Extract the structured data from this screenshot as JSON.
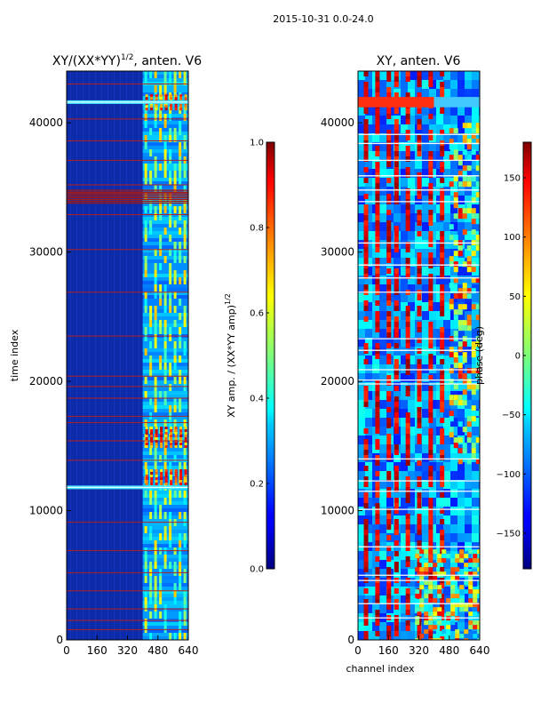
{
  "figure": {
    "suptitle": "2015-10-31 0.0-24.0"
  },
  "colormap": "jet",
  "chart_data": [
    {
      "type": "heatmap",
      "id": "amp",
      "title_main": "XY/(XX*YY)",
      "title_sup": "1/2",
      "title_tail": ", anten. V6",
      "xlabel": "",
      "ylabel": "time index",
      "xlim": [
        0,
        640
      ],
      "ylim": [
        0,
        44000
      ],
      "xticks": [
        0,
        160,
        320,
        480,
        640
      ],
      "yticks": [
        0,
        10000,
        20000,
        30000,
        40000
      ],
      "active_band": [
        400,
        640
      ],
      "red_lines": [
        800,
        1500,
        2400,
        3800,
        5200,
        6900,
        9100,
        13900,
        15400,
        16800,
        17300,
        18700,
        19600,
        20400,
        23500,
        26900,
        30200,
        32900,
        34200,
        34600,
        35200,
        37100,
        38600,
        40300,
        41600,
        43000
      ],
      "bright_rows": [
        11800,
        41600
      ],
      "colorbar": {
        "label_main": "XY amp. / (XX*YY amp)",
        "label_sup": "1/2",
        "range": [
          0.0,
          1.0
        ],
        "ticks": [
          0.0,
          0.2,
          0.4,
          0.6,
          0.8,
          1.0
        ],
        "tick_labels": [
          "0.0",
          "0.2",
          "0.4",
          "0.6",
          "0.8",
          "1.0"
        ]
      }
    },
    {
      "type": "heatmap",
      "id": "phase",
      "title_main": "XY, anten. V6",
      "xlabel": "channel index",
      "ylabel": "",
      "xlim": [
        0,
        640
      ],
      "ylim": [
        0,
        44000
      ],
      "xticks": [
        0,
        160,
        320,
        480,
        640
      ],
      "yticks": [
        0,
        10000,
        20000,
        30000,
        40000
      ],
      "red_columns": [
        40,
        100,
        160,
        200,
        260,
        320,
        380,
        440
      ],
      "white_lines": [
        1700,
        2800,
        4600,
        5000,
        7200,
        10100,
        11500,
        12300,
        14000,
        19800,
        20100,
        20900,
        22400,
        23300,
        26900,
        28000,
        29000,
        30700,
        33900,
        34800,
        35900,
        37100,
        38400,
        39100
      ],
      "bright_band": [
        41200,
        42000
      ],
      "colorbar": {
        "label_main": "phase (deg)",
        "range": [
          -180,
          180
        ],
        "ticks": [
          -150,
          -100,
          -50,
          0,
          50,
          100,
          150
        ],
        "tick_labels": [
          "−150",
          "−100",
          "−50",
          "0",
          "50",
          "100",
          "150"
        ]
      }
    }
  ]
}
